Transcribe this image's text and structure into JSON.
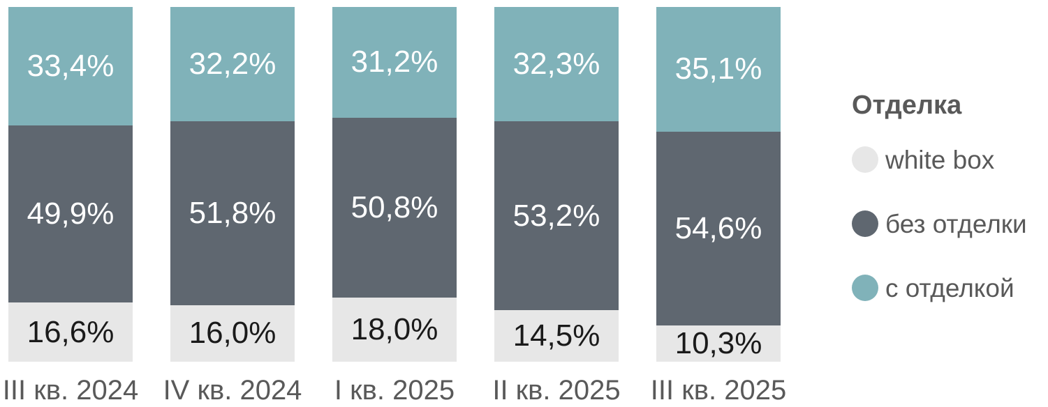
{
  "chart_data": {
    "type": "bar",
    "variant": "100%-stacked-column",
    "title": "",
    "categories": [
      "III кв. 2024",
      "IV кв. 2024",
      "I кв. 2025",
      "II кв. 2025",
      "III кв. 2025"
    ],
    "series": [
      {
        "name": "white box",
        "color": "#E7E7E7",
        "label_color": "#1a1a1a",
        "values": [
          16.6,
          16.0,
          18.0,
          14.5,
          10.3
        ],
        "labels": [
          "16,6%",
          "16,0%",
          "18,0%",
          "14,5%",
          "10,3%"
        ]
      },
      {
        "name": "без отделки",
        "color": "#5F6770",
        "label_color": "#ffffff",
        "values": [
          49.9,
          51.8,
          50.8,
          53.2,
          54.6
        ],
        "labels": [
          "49,9%",
          "51,8%",
          "50,8%",
          "53,2%",
          "54,6%"
        ]
      },
      {
        "name": "с отделкой",
        "color": "#80B2B9",
        "label_color": "#ffffff",
        "values": [
          33.4,
          32.2,
          31.2,
          32.3,
          35.1
        ],
        "labels": [
          "33,4%",
          "32,2%",
          "31,2%",
          "32,3%",
          "35,1%"
        ]
      }
    ],
    "stack_order_bottom_to_top": [
      "white box",
      "без отделки",
      "с отделкой"
    ],
    "legend_title": "Отделка",
    "legend_position": "right",
    "axis": {
      "x_labels_color": "#595959",
      "y_axis_visible": false,
      "gridlines": false,
      "ylim": [
        0,
        100
      ]
    }
  }
}
